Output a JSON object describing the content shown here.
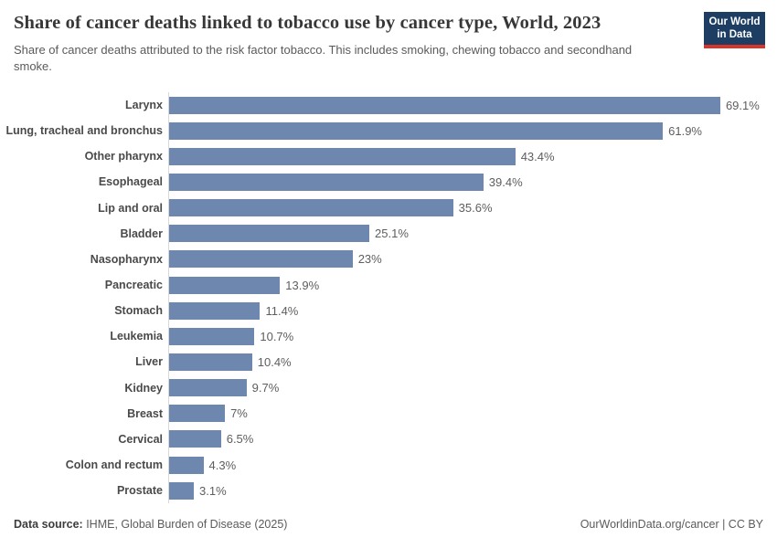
{
  "header": {
    "title": "Share of cancer deaths linked to tobacco use by cancer type, World, 2023",
    "subtitle": "Share of cancer deaths attributed to the risk factor tobacco. This includes smoking, chewing tobacco and secondhand smoke.",
    "logo": {
      "line1": "Our World",
      "line2": "in Data",
      "background_color": "#1d3d63",
      "accent_color": "#d8352a"
    }
  },
  "chart_data": {
    "type": "bar",
    "orientation": "horizontal",
    "title": "Share of cancer deaths linked to tobacco use by cancer type, World, 2023",
    "subtitle": "Share of cancer deaths attributed to the risk factor tobacco. This includes smoking, chewing tobacco and secondhand smoke.",
    "categories": [
      "Larynx",
      "Lung, tracheal and bronchus",
      "Other pharynx",
      "Esophageal",
      "Lip and oral",
      "Bladder",
      "Nasopharynx",
      "Pancreatic",
      "Stomach",
      "Leukemia",
      "Liver",
      "Kidney",
      "Breast",
      "Cervical",
      "Colon and rectum",
      "Prostate"
    ],
    "values": [
      69.1,
      61.9,
      43.4,
      39.4,
      35.6,
      25.1,
      23,
      13.9,
      11.4,
      10.7,
      10.4,
      9.7,
      7,
      6.5,
      4.3,
      3.1
    ],
    "value_labels": [
      "69.1%",
      "61.9%",
      "43.4%",
      "39.4%",
      "35.6%",
      "25.1%",
      "23%",
      "13.9%",
      "11.4%",
      "10.7%",
      "10.4%",
      "9.7%",
      "7%",
      "6.5%",
      "4.3%",
      "3.1%"
    ],
    "unit": "%",
    "xlim": [
      0,
      69.1
    ],
    "bar_color": "#6d87ae",
    "grid": false,
    "legend": "none"
  },
  "footer": {
    "datasource_label": "Data source:",
    "datasource_value": " IHME, Global Burden of Disease (2025)",
    "credit": "OurWorldinData.org/cancer | CC BY"
  }
}
